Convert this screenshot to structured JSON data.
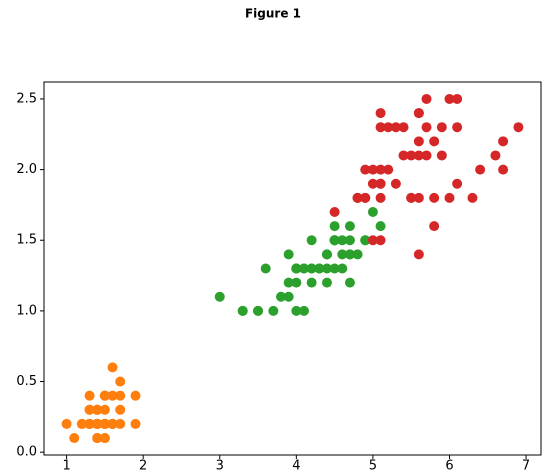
{
  "chart_data": {
    "type": "scatter",
    "title": "Figure 1",
    "xlim": [
      0.705,
      7.195
    ],
    "ylim": [
      -0.02,
      2.62
    ],
    "xticks": [
      1,
      2,
      3,
      4,
      5,
      6,
      7
    ],
    "yticks": [
      {
        "value": 0,
        "label": "0.0"
      },
      0.5,
      {
        "value": 1,
        "label": "1.0"
      },
      1.5,
      {
        "value": 2,
        "label": "2.0"
      },
      2.5
    ],
    "series": [
      {
        "color": "#ff7f0e",
        "x": [
          1.4,
          1.4,
          1.3,
          1.5,
          1.4,
          1.7,
          1.4,
          1.5,
          1.4,
          1.5,
          1.5,
          1.6,
          1.4,
          1.1,
          1.2,
          1.5,
          1.3,
          1.4,
          1.7,
          1.5,
          1.7,
          1.5,
          1.0,
          1.7,
          1.9,
          1.6,
          1.6,
          1.5,
          1.4,
          1.6,
          1.6,
          1.5,
          1.5,
          1.4,
          1.5,
          1.2,
          1.3,
          1.4,
          1.3,
          1.5,
          1.3,
          1.3,
          1.3,
          1.6,
          1.9,
          1.4,
          1.6,
          1.4,
          1.5,
          1.4
        ],
        "values": [
          0.2,
          0.2,
          0.2,
          0.2,
          0.2,
          0.4,
          0.3,
          0.2,
          0.2,
          0.1,
          0.2,
          0.2,
          0.1,
          0.1,
          0.2,
          0.4,
          0.4,
          0.3,
          0.3,
          0.3,
          0.2,
          0.4,
          0.2,
          0.5,
          0.2,
          0.2,
          0.4,
          0.2,
          0.2,
          0.2,
          0.2,
          0.4,
          0.1,
          0.2,
          0.2,
          0.2,
          0.2,
          0.1,
          0.2,
          0.2,
          0.3,
          0.3,
          0.2,
          0.6,
          0.4,
          0.3,
          0.2,
          0.2,
          0.2,
          0.2
        ]
      },
      {
        "color": "#2ca02c",
        "x": [
          4.7,
          4.5,
          4.9,
          4.0,
          4.6,
          4.5,
          4.7,
          3.3,
          4.6,
          3.9,
          3.5,
          4.2,
          4.0,
          4.7,
          3.6,
          4.4,
          4.5,
          4.1,
          4.5,
          3.9,
          4.8,
          4.0,
          4.9,
          4.7,
          4.3,
          4.4,
          4.8,
          5.0,
          4.5,
          3.5,
          3.8,
          3.7,
          3.9,
          5.1,
          4.5,
          4.5,
          4.7,
          4.4,
          4.1,
          4.0,
          4.4,
          4.6,
          4.0,
          3.3,
          4.2,
          4.2,
          4.2,
          4.3,
          3.0,
          4.1
        ],
        "values": [
          1.4,
          1.5,
          1.5,
          1.3,
          1.5,
          1.3,
          1.6,
          1.0,
          1.3,
          1.4,
          1.0,
          1.5,
          1.0,
          1.4,
          1.3,
          1.4,
          1.5,
          1.0,
          1.5,
          1.1,
          1.8,
          1.3,
          1.5,
          1.2,
          1.3,
          1.4,
          1.4,
          1.7,
          1.5,
          1.0,
          1.1,
          1.0,
          1.2,
          1.6,
          1.5,
          1.6,
          1.5,
          1.3,
          1.3,
          1.3,
          1.2,
          1.4,
          1.2,
          1.0,
          1.3,
          1.2,
          1.3,
          1.3,
          1.1,
          1.3
        ]
      },
      {
        "color": "#d62728",
        "x": [
          6.0,
          5.1,
          5.9,
          5.6,
          5.8,
          6.6,
          4.5,
          6.3,
          5.8,
          6.1,
          5.1,
          5.3,
          5.5,
          5.0,
          5.1,
          5.3,
          5.5,
          6.7,
          6.9,
          5.0,
          5.7,
          4.9,
          6.7,
          4.9,
          5.7,
          6.0,
          4.8,
          4.9,
          5.6,
          5.8,
          6.1,
          6.4,
          5.6,
          5.1,
          5.6,
          6.1,
          5.6,
          5.5,
          4.8,
          5.4,
          5.6,
          5.1,
          5.1,
          5.9,
          5.7,
          5.2,
          5.0,
          5.2,
          5.4,
          5.1
        ],
        "values": [
          2.5,
          1.9,
          2.1,
          1.8,
          2.2,
          2.1,
          1.7,
          1.8,
          1.8,
          2.5,
          2.0,
          1.9,
          2.1,
          2.0,
          2.4,
          2.3,
          1.8,
          2.2,
          2.3,
          1.5,
          2.3,
          2.0,
          2.0,
          1.8,
          2.1,
          1.8,
          1.8,
          1.8,
          2.1,
          1.6,
          1.9,
          2.0,
          2.2,
          1.5,
          1.4,
          2.3,
          2.4,
          1.8,
          1.8,
          2.1,
          2.4,
          2.3,
          1.9,
          2.3,
          2.5,
          2.3,
          1.9,
          2.0,
          2.3,
          1.8
        ]
      }
    ]
  }
}
